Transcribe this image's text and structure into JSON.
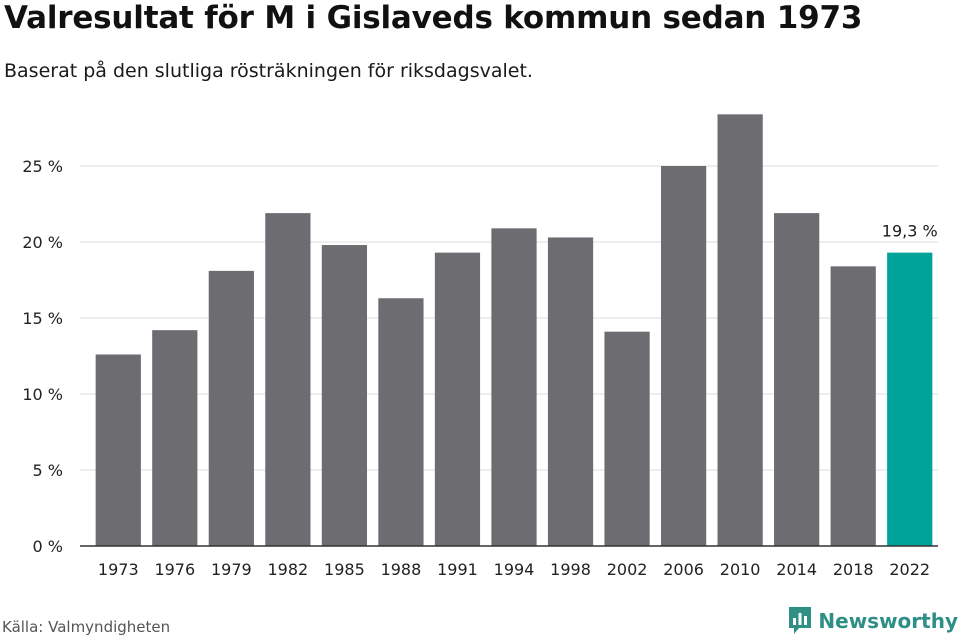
{
  "header": {
    "title": "Valresultat för M i Gislaveds kommun sedan 1973",
    "subtitle": "Baserat på den slutliga rösträkningen för riksdagsvalet."
  },
  "footer": {
    "source": "Källa: Valmyndigheten",
    "brand": "Newsworthy"
  },
  "colors": {
    "bar": "#6d6c71",
    "highlight": "#00a399",
    "grid": "#dddddd",
    "axis": "#333333",
    "brand": "#2e8f86"
  },
  "chart_data": {
    "type": "bar",
    "categories": [
      "1973",
      "1976",
      "1979",
      "1982",
      "1985",
      "1988",
      "1991",
      "1994",
      "1998",
      "2002",
      "2006",
      "2010",
      "2014",
      "2018",
      "2022"
    ],
    "values": [
      12.6,
      14.2,
      18.1,
      21.9,
      19.8,
      16.3,
      19.3,
      20.9,
      20.3,
      14.1,
      25.0,
      28.4,
      21.9,
      18.4,
      19.3
    ],
    "title": "Valresultat för M i Gislaveds kommun sedan 1973",
    "subtitle": "Baserat på den slutliga rösträkningen för riksdagsvalet.",
    "xlabel": "",
    "ylabel": "",
    "ylim": [
      0,
      30
    ],
    "yticks": [
      0,
      5,
      10,
      15,
      20,
      25
    ],
    "ytick_labels": [
      "0 %",
      "5 %",
      "10 %",
      "15 %",
      "20 %",
      "25 %"
    ],
    "highlight_index": 14,
    "data_labels": [
      {
        "index": 14,
        "text": "19,3 %"
      }
    ],
    "grid": true,
    "legend": "none"
  }
}
